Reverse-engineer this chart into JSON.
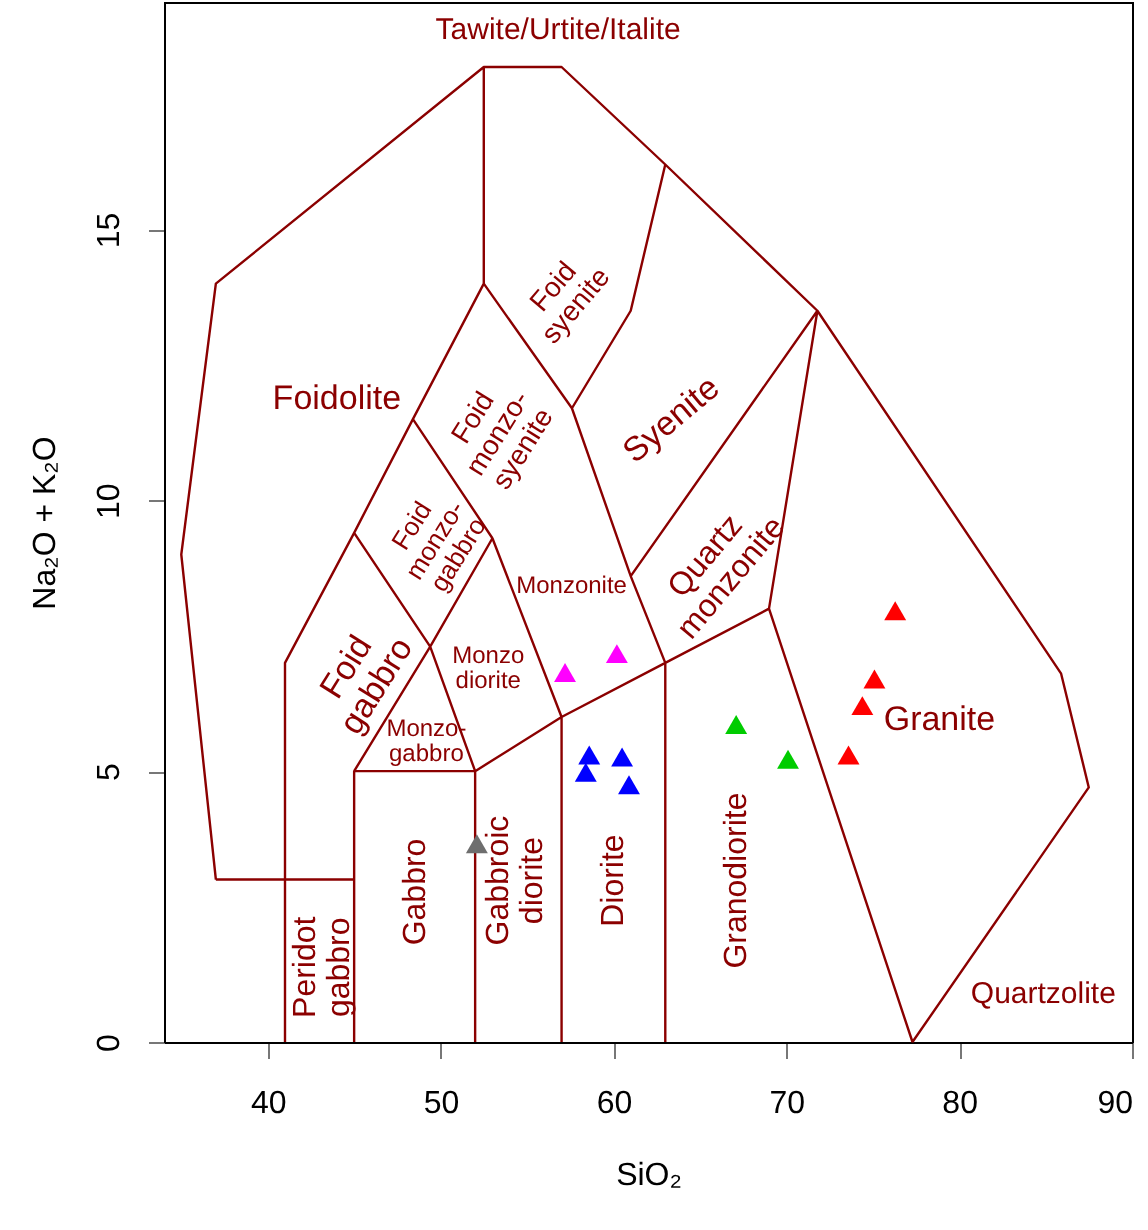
{
  "chart_data": {
    "type": "scatter",
    "xlabel": "SiO₂",
    "ylabel": "Na₂O + K₂O",
    "xlim": [
      34,
      90
    ],
    "ylim": [
      0,
      19.2
    ],
    "xticks": [
      40,
      50,
      60,
      70,
      80,
      90
    ],
    "yticks": [
      0,
      5,
      10,
      15
    ],
    "series": [
      {
        "type": "line",
        "color": "#8b0000",
        "x": [
          37,
          35,
          37,
          52.5,
          57,
          63,
          71.8,
          85.9,
          87.5,
          77.3,
          null,
          37,
          45,
          null,
          41,
          41,
          45,
          48.4,
          52.5,
          52.5,
          null,
          45,
          45,
          52,
          57,
          63,
          69,
          77.3,
          null,
          52,
          52,
          null,
          57,
          57,
          null,
          63,
          63,
          null,
          45,
          49.4,
          52,
          null,
          45,
          49.4,
          53,
          57,
          null,
          48.4,
          53,
          null,
          52.5,
          57.6,
          61,
          63,
          null,
          57.6,
          61,
          63,
          null,
          61,
          71.8,
          69
        ],
        "values": [
          3,
          9,
          14,
          18,
          18,
          16.2,
          13.5,
          6.8,
          4.7,
          0,
          null,
          3,
          3,
          null,
          0,
          7,
          9.4,
          11.5,
          14,
          18,
          null,
          0,
          5,
          5,
          6,
          7,
          8,
          0,
          null,
          0,
          5,
          null,
          0,
          6,
          null,
          0,
          7,
          null,
          5,
          7.3,
          5,
          null,
          9.4,
          7.3,
          9.3,
          6,
          null,
          11.5,
          9.3,
          null,
          14,
          11.7,
          8.6,
          7,
          null,
          11.7,
          13.5,
          16.2,
          null,
          8.6,
          13.5,
          8
        ]
      },
      {
        "color": "#6e6e6e",
        "marker": "triangle",
        "x": [
          52.1
        ],
        "values": [
          3.66
        ]
      },
      {
        "color": "#0000ff",
        "marker": "triangle",
        "x": [
          58.6,
          58.4,
          60.5,
          60.9
        ],
        "values": [
          5.3,
          4.98,
          5.26,
          4.75
        ]
      },
      {
        "color": "#ff00ff",
        "marker": "triangle",
        "x": [
          57.2,
          60.2
        ],
        "values": [
          6.82,
          7.17
        ]
      },
      {
        "color": "#00cc00",
        "marker": "triangle",
        "x": [
          67.1,
          70.1
        ],
        "values": [
          5.86,
          5.22
        ]
      },
      {
        "color": "#ff0000",
        "marker": "triangle",
        "x": [
          76.3,
          75.1,
          74.4,
          73.6
        ],
        "values": [
          7.96,
          6.7,
          6.21,
          5.3
        ]
      }
    ],
    "annotations": [
      "Tawite/Urtite/Italite",
      "Foidolite",
      "Foid\nsyenite",
      "Foid\nmonzo-\nsyenite",
      "Foid\nmonzo-\ngabbro",
      "Foid\ngabbro",
      "Syenite",
      "Quartz\nmonzonite",
      "Monzonite",
      "Monzo\ndiorite",
      "Monzo-\ngabbro",
      "Peridot\ngabbro",
      "Gabbro",
      "Gabbroic\ndiorite",
      "Diorite",
      "Granodiorite",
      "Granite",
      "Quartzolite"
    ]
  }
}
